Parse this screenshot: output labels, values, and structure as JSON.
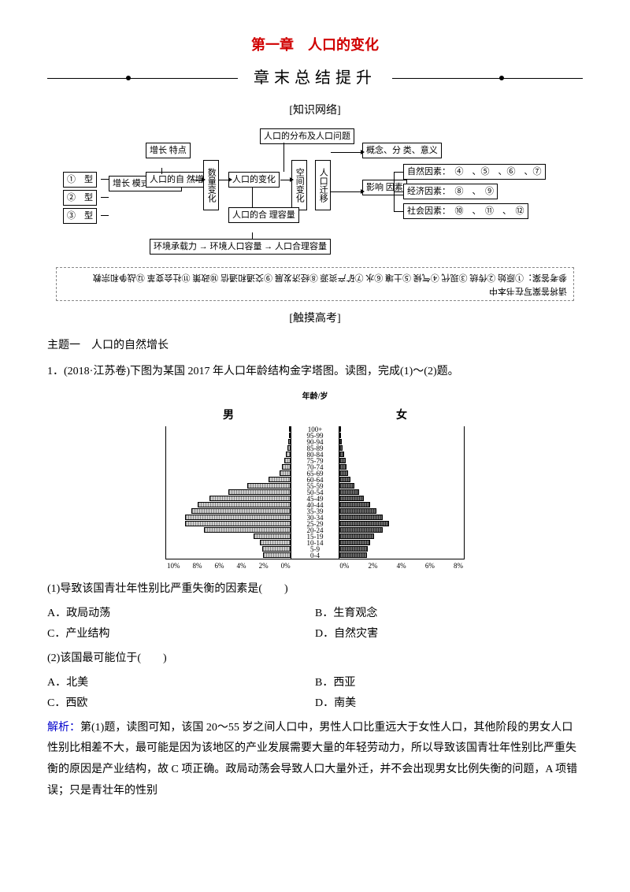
{
  "chapter_title": "第一章　人口的变化",
  "banner": "章末总结提升",
  "section_knowledge": "[知识网络]",
  "concept": {
    "box_dist": "人口的分布及人口问题",
    "box_growth_feature": "增长\n特点",
    "box_type1": "①　型",
    "box_type2": "②　型",
    "box_type3": "③　型",
    "box_growth_mode": "增长\n模式\n及转变",
    "box_natural_growth": "人口的自\n然增长",
    "box_qty_change": "数量变化",
    "box_pop_change": "人口的变化",
    "box_spatial": "空间变化",
    "box_migration": "人口迁移",
    "box_concept": "概念、分\n类、意义",
    "box_factors": "影响\n因素",
    "box_natural_factors": "自然因素：　④　、⑤　、⑥　、⑦",
    "box_econ_factors": "经济因素：　⑧　、　⑨",
    "box_social_factors": "社会因素：　⑩　、　⑪　、　⑫",
    "box_capacity": "人口的合\n理容量",
    "box_env": "环境承载力 → 环境人口容量 → 人口合理容量"
  },
  "answer_text": "请将答案写在书本中",
  "answer_line2": "参考答案：①原始 ②传统 ③现代 ④气候 ⑤土壤 ⑥水 ⑦矿产资源 ⑧经济发展 ⑨交通和通信 ⑩政策 ⑪社会变革 ⑫战争和宗教",
  "section_touch": "[触摸高考]",
  "topic1": "主题一　人口的自然增长",
  "q1_stem": "1．(2018·江苏卷)下图为某国 2017 年人口年龄结构金字塔图。读图，完成(1)～(2)题。",
  "pyramid": {
    "title": "年龄/岁",
    "side_left": "男",
    "side_right": "女",
    "groups": [
      "100+",
      "95-99",
      "90-94",
      "85-89",
      "80-84",
      "75-79",
      "70-74",
      "65-69",
      "60-64",
      "55-59",
      "50-54",
      "45-49",
      "40-44",
      "35-39",
      "30-34",
      "25-29",
      "20-24",
      "15-19",
      "10-14",
      "5-9",
      "0-4"
    ],
    "male": [
      0.1,
      0.1,
      0.2,
      0.3,
      0.4,
      0.5,
      0.7,
      0.9,
      1.8,
      3.5,
      5.0,
      6.5,
      7.5,
      8.0,
      8.5,
      8.5,
      7.0,
      3.0,
      2.5,
      2.3,
      2.2
    ],
    "female": [
      0.1,
      0.1,
      0.2,
      0.3,
      0.4,
      0.5,
      0.6,
      0.7,
      0.9,
      1.2,
      1.6,
      2.0,
      2.5,
      3.0,
      3.5,
      4.0,
      3.5,
      2.8,
      2.5,
      2.3,
      2.2
    ],
    "xaxis_left": [
      "10%",
      "8%",
      "6%",
      "4%",
      "2%",
      "0%"
    ],
    "xaxis_right": [
      "0%",
      "2%",
      "4%",
      "6%",
      "8%"
    ],
    "x_max": 10,
    "bar_male_color": "#cccccc",
    "bar_female_color": "#666666",
    "axis_color": "#000000"
  },
  "q1_1": "(1)导致该国青壮年性别比严重失衡的因素是(　　)",
  "q1_1A": "A．政局动荡",
  "q1_1B": "B．生育观念",
  "q1_1C": "C．产业结构",
  "q1_1D": "D．自然灾害",
  "q1_2": "(2)该国最可能位于(　　)",
  "q1_2A": "A．北美",
  "q1_2B": "B．西亚",
  "q1_2C": "C．西欧",
  "q1_2D": "D．南美",
  "analysis_label": "解析：",
  "analysis_text": "第(1)题，读图可知，该国 20～55 岁之间人口中，男性人口比重远大于女性人口，其他阶段的男女人口性别比相差不大，最可能是因为该地区的产业发展需要大量的年轻劳动力，所以导致该国青壮年性别比严重失衡的原因是产业结构，故 C 项正确。政局动荡会导致人口大量外迁，并不会出现男女比例失衡的问题，A 项错误；只是青壮年的性别"
}
